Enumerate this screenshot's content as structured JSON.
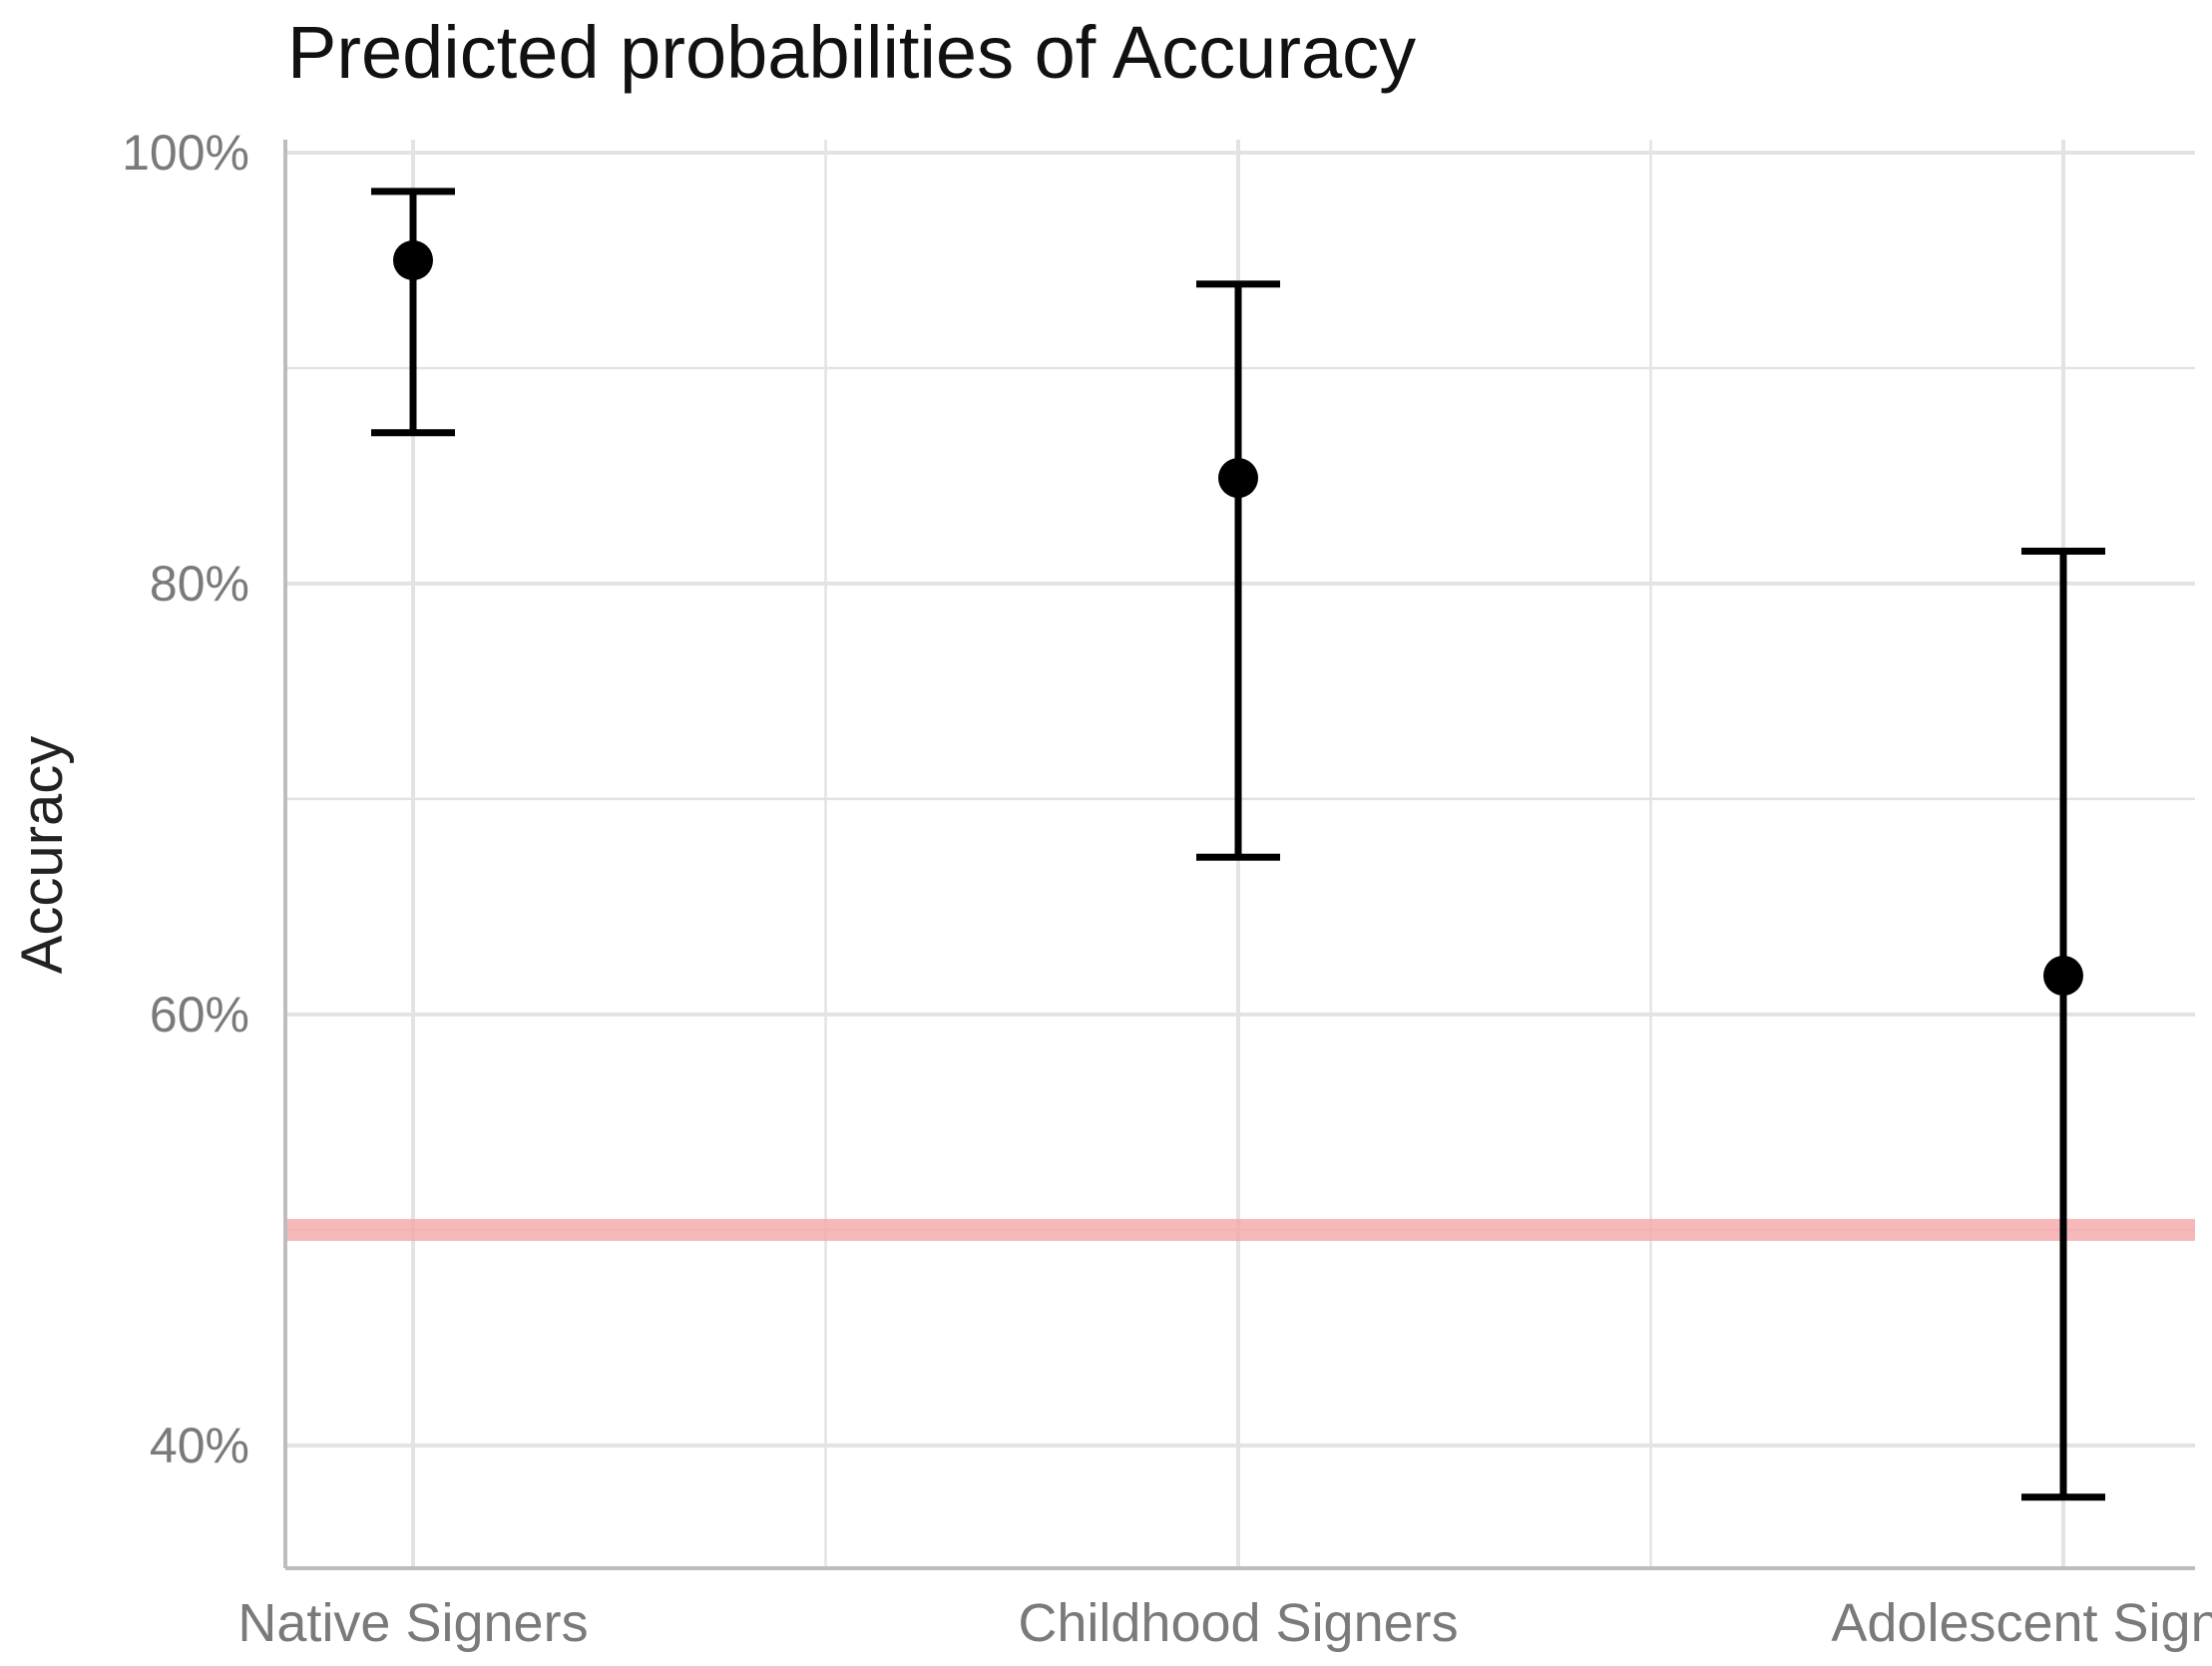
{
  "chart_data": {
    "type": "scatter",
    "title": "Predicted probabilities of Accuracy",
    "xlabel": "",
    "ylabel": "Accuracy",
    "categories": [
      "Native Signers",
      "Childhood Signers",
      "Adolescent Signers"
    ],
    "y_tick_labels": [
      "40%",
      "60%",
      "80%",
      "100%"
    ],
    "y_ticks": [
      40,
      60,
      80,
      100
    ],
    "ylim": [
      34.3,
      100.6
    ],
    "grid": true,
    "reference_line": {
      "value": 50,
      "color": "#f4a6a6"
    },
    "points": [
      {
        "category": "Native Signers",
        "estimate": 95.0,
        "lower": 87.0,
        "upper": 98.2
      },
      {
        "category": "Childhood Signers",
        "estimate": 84.9,
        "lower": 67.3,
        "upper": 93.9
      },
      {
        "category": "Adolescent Signers",
        "estimate": 61.8,
        "lower": 37.6,
        "upper": 81.5
      }
    ],
    "colors": {
      "points": "#000000",
      "grid": "#e3e3e3",
      "axis": "#bdbdbd",
      "reference": "#f4a6a6"
    }
  }
}
